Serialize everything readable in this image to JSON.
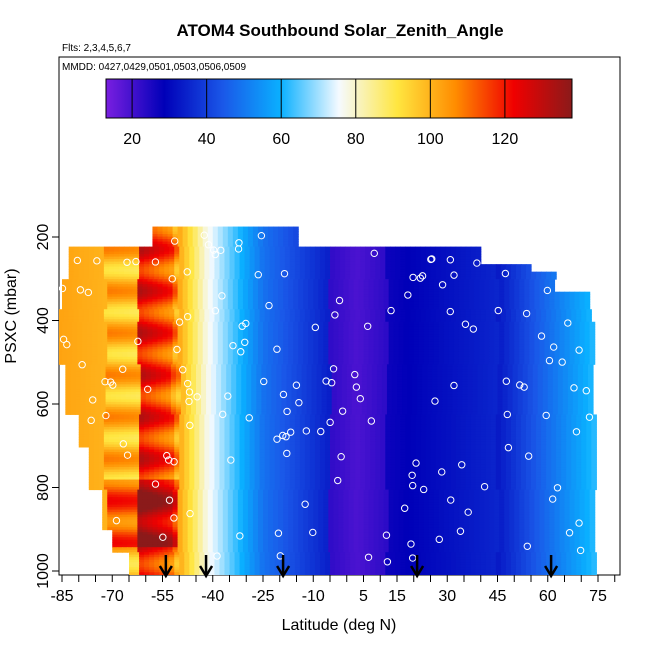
{
  "chart_data": {
    "type": "heatmap",
    "title": "ATOM4 Southbound Solar_Zenith_Angle",
    "subtitle_flights": "Flts: 2,3,4,5,6,7",
    "subtitle_dates": "MMDD: 0427,0429,0501,0503,0506,0509",
    "xlabel": "Latitude (deg N)",
    "ylabel": "PSXC (mbar)",
    "xlim": [
      -88,
      82
    ],
    "ylim": [
      1015,
      50
    ],
    "x_ticks": [
      -85,
      -70,
      -55,
      -40,
      -25,
      -10,
      5,
      15,
      30,
      45,
      60,
      75
    ],
    "x_tick_labels": [
      "-85",
      "-70",
      "-55",
      "-40",
      "-25",
      "-10",
      "5",
      "15",
      "30",
      "45",
      "60",
      "75"
    ],
    "y_ticks": [
      200,
      400,
      600,
      800,
      1000
    ],
    "y_tick_labels": [
      "200",
      "400",
      "600",
      "800",
      "1000"
    ],
    "colorbar": {
      "min": 13,
      "max": 138,
      "ticks": [
        20,
        40,
        60,
        80,
        100,
        120
      ],
      "tick_labels": [
        "20",
        "40",
        "60",
        "80",
        "100",
        "120"
      ],
      "colors": [
        "#7a1fe0",
        "#0000b8",
        "#1a57e8",
        "#0ab0ff",
        "#f5faff",
        "#ffe640",
        "#ff8c00",
        "#f00000",
        "#8b1a1a"
      ]
    },
    "profile_arrows_lat": [
      -54,
      -42,
      -19,
      21,
      61
    ],
    "grid": false,
    "legend": "colorbar at top of plot area"
  }
}
